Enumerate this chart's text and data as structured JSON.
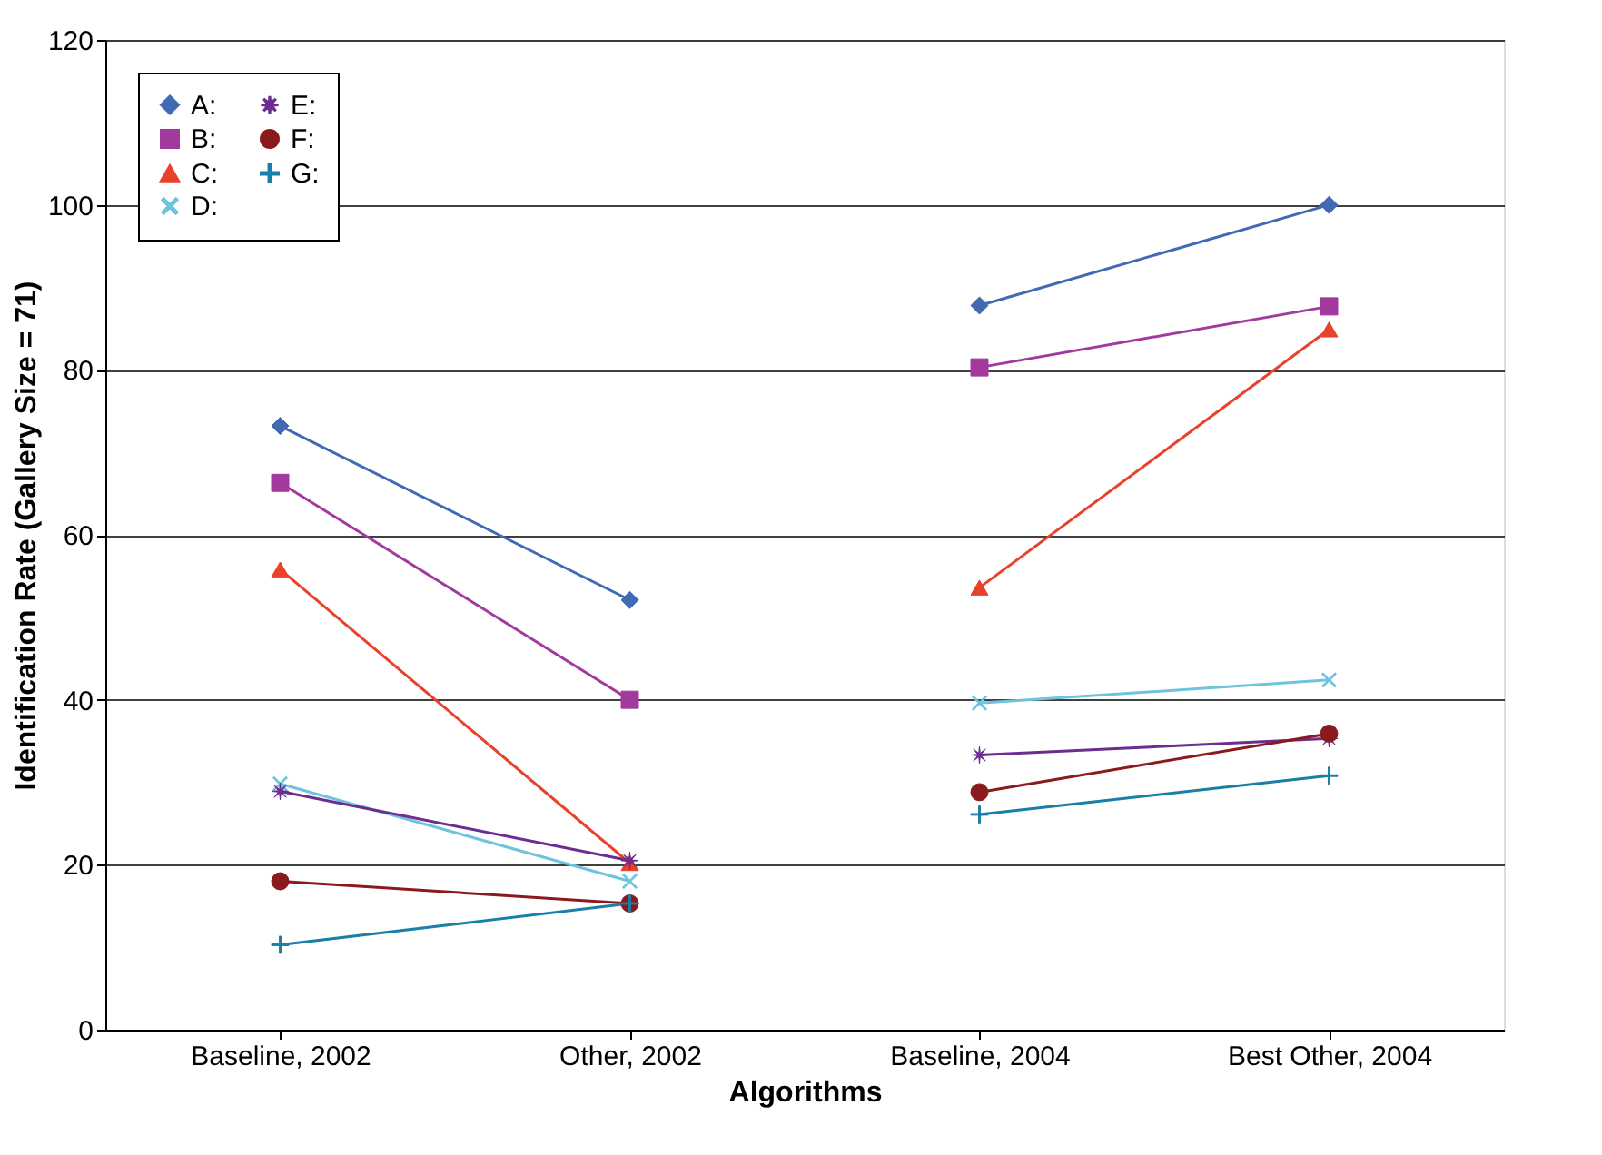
{
  "chart_data": {
    "type": "line",
    "xlabel": "Algorithms",
    "ylabel": "Identification Rate (Gallery Size = 71)",
    "categories": [
      "Baseline, 2002",
      "Other, 2002",
      "Baseline, 2004",
      "Best Other, 2004"
    ],
    "ylim": [
      0,
      120
    ],
    "yticks": [
      0,
      20,
      40,
      60,
      80,
      100,
      120
    ],
    "grid": "y",
    "legend": "top left",
    "series": [
      {
        "name": "A:",
        "color": "#4169b4",
        "marker": "diamond",
        "values": [
          73.2,
          52.1,
          87.8,
          100
        ]
      },
      {
        "name": "B:",
        "color": "#a23a9e",
        "marker": "square",
        "values": [
          66.3,
          40.0,
          80.3,
          87.7
        ]
      },
      {
        "name": "C:",
        "color": "#e8412c",
        "marker": "triangle",
        "values": [
          55.8,
          20.2,
          53.6,
          84.9
        ]
      },
      {
        "name": "D:",
        "color": "#6ec3dd",
        "marker": "x",
        "values": [
          29.8,
          18.0,
          39.6,
          42.4
        ]
      },
      {
        "name": "E:",
        "color": "#6b2d8f",
        "marker": "star",
        "values": [
          28.9,
          20.5,
          33.3,
          35.3
        ]
      },
      {
        "name": "F:",
        "color": "#8b1a1f",
        "marker": "circle",
        "values": [
          18.0,
          15.3,
          28.8,
          35.9
        ]
      },
      {
        "name": "G:",
        "color": "#1a7fa8",
        "marker": "cross",
        "values": [
          10.3,
          15.3,
          26.1,
          30.8
        ]
      }
    ]
  }
}
